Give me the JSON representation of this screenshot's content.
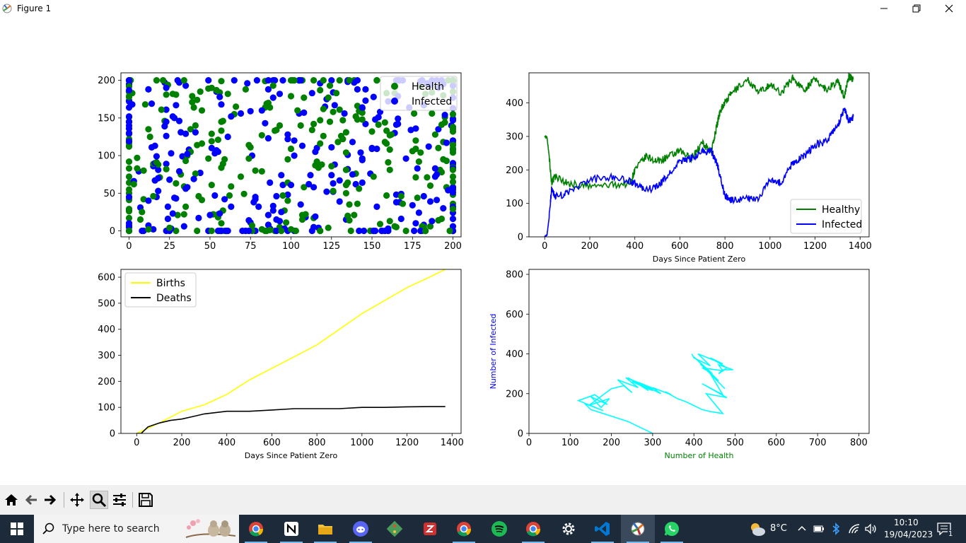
{
  "window": {
    "title": "Figure 1"
  },
  "toolbar": {
    "buttons": [
      "home-icon",
      "back-icon",
      "forward-icon",
      "pan-icon",
      "zoom-icon",
      "configure-icon",
      "save-icon"
    ]
  },
  "taskbar": {
    "search_placeholder": "Type here to search",
    "apps": [
      "chrome-icon",
      "notion-icon",
      "file-explorer-icon",
      "discord-icon",
      "git-icon",
      "app-icon",
      "chrome-icon",
      "spotify-icon",
      "chrome-icon",
      "settings-icon",
      "vscode-icon",
      "python-figure-icon",
      "whatsapp-icon"
    ],
    "weather": "8°C",
    "time": "10:10",
    "date": "19/04/2023",
    "notification_count": "1"
  },
  "colors": {
    "healthy": "#008000",
    "infected": "#0000ff",
    "births": "#ffff00",
    "deaths": "#000000",
    "phase": "#00ffff"
  },
  "chart_data": [
    {
      "type": "scatter",
      "title": "",
      "xlabel": "",
      "ylabel": "",
      "xlim": [
        -5,
        205
      ],
      "ylim": [
        -8,
        210
      ],
      "xticks": [
        "0",
        "25",
        "50",
        "75",
        "100",
        "125",
        "150",
        "175",
        "200"
      ],
      "yticks": [
        "0",
        "50",
        "100",
        "150",
        "200"
      ],
      "legend": {
        "position": "top-right",
        "entries": [
          "Health",
          "Infected"
        ]
      },
      "series": [
        {
          "name": "Health",
          "note_count": 300
        },
        {
          "name": "Infected",
          "note_count": 300
        }
      ]
    },
    {
      "type": "line",
      "title": "",
      "xlabel": "Days Since Patient Zero",
      "ylabel": "",
      "xlim": [
        -70,
        1440
      ],
      "ylim": [
        0,
        490
      ],
      "xticks": [
        "0",
        "200",
        "400",
        "600",
        "800",
        "1000",
        "1200",
        "1400"
      ],
      "yticks": [
        "0",
        "100",
        "200",
        "300",
        "400"
      ],
      "legend": {
        "position": "bottom-right",
        "entries": [
          "Healthy",
          "Infected"
        ]
      },
      "series": [
        {
          "name": "Healthy",
          "x": [
            0,
            10,
            20,
            30,
            50,
            100,
            200,
            300,
            380,
            400,
            450,
            500,
            550,
            600,
            650,
            700,
            740,
            760,
            780,
            800,
            830,
            900,
            950,
            1000,
            1050,
            1100,
            1150,
            1200,
            1250,
            1300,
            1330,
            1350,
            1370
          ],
          "values": [
            300,
            298,
            240,
            165,
            180,
            160,
            150,
            155,
            160,
            200,
            240,
            225,
            240,
            255,
            235,
            280,
            255,
            320,
            380,
            400,
            430,
            470,
            430,
            455,
            430,
            475,
            440,
            470,
            440,
            465,
            420,
            480,
            470
          ]
        },
        {
          "name": "Infected",
          "x": [
            0,
            10,
            20,
            30,
            50,
            100,
            200,
            300,
            380,
            400,
            450,
            500,
            550,
            600,
            650,
            700,
            740,
            760,
            780,
            800,
            830,
            900,
            950,
            1000,
            1050,
            1100,
            1150,
            1200,
            1250,
            1300,
            1330,
            1350,
            1370
          ],
          "values": [
            0,
            5,
            60,
            140,
            120,
            130,
            170,
            180,
            165,
            160,
            140,
            150,
            185,
            225,
            235,
            255,
            255,
            230,
            180,
            120,
            110,
            115,
            110,
            175,
            160,
            220,
            240,
            275,
            285,
            330,
            385,
            345,
            360
          ]
        }
      ]
    },
    {
      "type": "line",
      "title": "",
      "xlabel": "Days Since Patient Zero",
      "ylabel": "",
      "xlim": [
        -70,
        1440
      ],
      "ylim": [
        0,
        630
      ],
      "xticks": [
        "0",
        "200",
        "400",
        "600",
        "800",
        "1000",
        "1200",
        "1400"
      ],
      "yticks": [
        "0",
        "100",
        "200",
        "300",
        "400",
        "500",
        "600"
      ],
      "legend": {
        "position": "top-left",
        "entries": [
          "Births",
          "Deaths"
        ]
      },
      "series": [
        {
          "name": "Births",
          "x": [
            0,
            50,
            100,
            200,
            300,
            400,
            500,
            600,
            700,
            800,
            900,
            1000,
            1100,
            1200,
            1300,
            1370
          ],
          "values": [
            0,
            20,
            40,
            85,
            110,
            150,
            205,
            250,
            295,
            340,
            400,
            460,
            510,
            560,
            600,
            630
          ]
        },
        {
          "name": "Deaths",
          "x": [
            0,
            20,
            50,
            100,
            150,
            200,
            250,
            300,
            400,
            500,
            600,
            700,
            800,
            900,
            1000,
            1100,
            1200,
            1300,
            1370
          ],
          "values": [
            0,
            0,
            25,
            40,
            50,
            55,
            65,
            75,
            85,
            85,
            90,
            95,
            95,
            95,
            100,
            100,
            102,
            103,
            103
          ]
        }
      ]
    },
    {
      "type": "line",
      "title": "",
      "xlabel": "Number of Health",
      "ylabel": "Number of Infected",
      "xlim": [
        0,
        825
      ],
      "ylim": [
        0,
        825
      ],
      "xticks": [
        "0",
        "100",
        "200",
        "300",
        "400",
        "500",
        "600",
        "700",
        "800"
      ],
      "yticks": [
        "0",
        "200",
        "400",
        "600",
        "800"
      ],
      "series": [
        {
          "name": "",
          "x": [
            300,
            240,
            150,
            135,
            180,
            120,
            160,
            190,
            150,
            175,
            195,
            145,
            200,
            230,
            250,
            215,
            265,
            235,
            280,
            250,
            300,
            240,
            290,
            260,
            310,
            280,
            320,
            300,
            345,
            330,
            360,
            380,
            400,
            420,
            440,
            470,
            430,
            480,
            420,
            470,
            440,
            475,
            430,
            460,
            415,
            455,
            400,
            445,
            420,
            470,
            460,
            495,
            470,
            460,
            480,
            440,
            470,
            410,
            440,
            400,
            395
          ],
          "values": [
            0,
            60,
            120,
            150,
            115,
            165,
            195,
            145,
            185,
            130,
            175,
            140,
            225,
            240,
            205,
            270,
            230,
            280,
            245,
            260,
            215,
            280,
            215,
            260,
            220,
            240,
            200,
            230,
            195,
            210,
            175,
            160,
            140,
            120,
            110,
            100,
            200,
            180,
            250,
            195,
            300,
            225,
            320,
            265,
            350,
            275,
            385,
            300,
            330,
            315,
            345,
            320,
            320,
            300,
            330,
            380,
            350,
            400,
            340,
            380,
            400
          ]
        }
      ]
    }
  ]
}
